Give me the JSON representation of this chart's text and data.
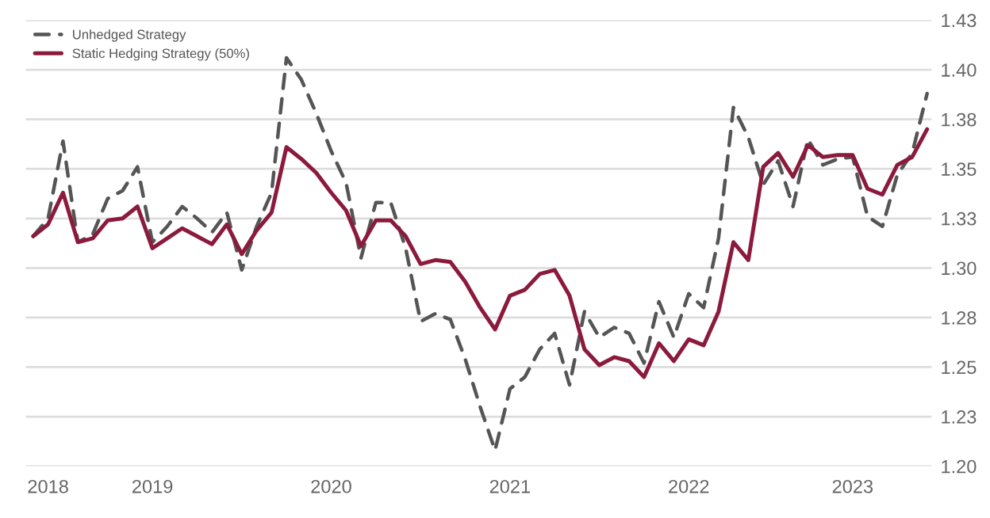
{
  "chart_data": {
    "type": "line",
    "categories": [
      null,
      "2018",
      null,
      null,
      null,
      null,
      null,
      null,
      "2019",
      null,
      null,
      null,
      null,
      null,
      null,
      null,
      null,
      null,
      null,
      null,
      "2020",
      null,
      null,
      null,
      null,
      null,
      null,
      null,
      null,
      null,
      null,
      null,
      "2021",
      null,
      null,
      null,
      null,
      null,
      null,
      null,
      null,
      null,
      null,
      null,
      "2022",
      null,
      null,
      null,
      null,
      null,
      null,
      null,
      null,
      null,
      null,
      "2023",
      null,
      null,
      null,
      null,
      null
    ],
    "series": [
      {
        "name": "Unhedged Strategy",
        "color": "#555555",
        "line_style": "dashed",
        "values": [
          1.316,
          1.325,
          1.364,
          1.313,
          1.317,
          1.335,
          1.339,
          1.351,
          1.313,
          1.321,
          1.331,
          1.325,
          1.318,
          1.328,
          1.299,
          1.321,
          1.338,
          1.406,
          1.395,
          1.378,
          1.359,
          1.343,
          1.305,
          1.333,
          1.333,
          1.31,
          1.273,
          1.277,
          1.274,
          1.254,
          1.23,
          1.208,
          1.239,
          1.245,
          1.259,
          1.267,
          1.241,
          1.278,
          1.265,
          1.27,
          1.267,
          1.252,
          1.283,
          1.265,
          1.287,
          1.28,
          1.315,
          1.381,
          1.366,
          1.342,
          1.354,
          1.331,
          1.365,
          1.352,
          1.355,
          1.356,
          1.326,
          1.321,
          1.347,
          1.358,
          1.388
        ]
      },
      {
        "name": "Static Hedging Strategy (50%)",
        "color": "#8b1a3c",
        "line_style": "solid",
        "values": [
          1.316,
          1.322,
          1.338,
          1.313,
          1.315,
          1.324,
          1.325,
          1.331,
          1.31,
          1.315,
          1.32,
          1.316,
          1.312,
          1.322,
          1.307,
          1.319,
          1.328,
          1.361,
          1.355,
          1.348,
          1.338,
          1.329,
          1.311,
          1.324,
          1.324,
          1.316,
          1.302,
          1.304,
          1.303,
          1.293,
          1.28,
          1.269,
          1.286,
          1.289,
          1.297,
          1.299,
          1.286,
          1.259,
          1.251,
          1.255,
          1.253,
          1.245,
          1.262,
          1.253,
          1.264,
          1.261,
          1.278,
          1.313,
          1.304,
          1.351,
          1.358,
          1.346,
          1.362,
          1.356,
          1.357,
          1.357,
          1.34,
          1.337,
          1.352,
          1.356,
          1.37
        ]
      }
    ],
    "ylim": [
      1.2,
      1.425
    ],
    "yticks": [
      {
        "value": 1.2,
        "label": "1.20"
      },
      {
        "value": 1.225,
        "label": "1.23"
      },
      {
        "value": 1.25,
        "label": "1.25"
      },
      {
        "value": 1.275,
        "label": "1.28"
      },
      {
        "value": 1.3,
        "label": "1.30"
      },
      {
        "value": 1.325,
        "label": "1.33"
      },
      {
        "value": 1.35,
        "label": "1.35"
      },
      {
        "value": 1.375,
        "label": "1.38"
      },
      {
        "value": 1.4,
        "label": "1.40"
      },
      {
        "value": 1.425,
        "label": "1.43"
      }
    ],
    "grid": "y",
    "legend": "top left",
    "marker": "none"
  }
}
